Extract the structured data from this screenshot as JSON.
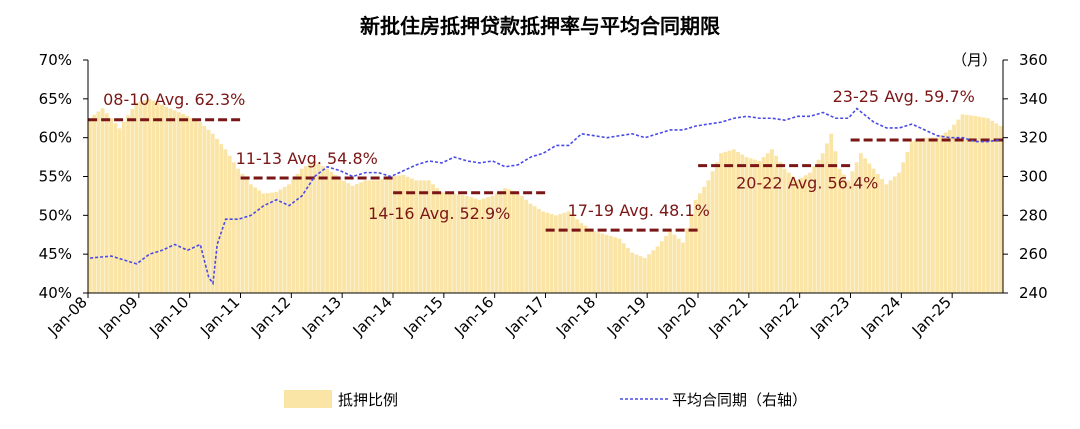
{
  "chart_data": {
    "type": "bar+line",
    "title": "新批住房抵押贷款抵押率与平均合同期限",
    "right_axis_unit": "（月）",
    "left_axis": {
      "ylim": [
        0.4,
        0.7
      ],
      "ticks": [
        "40%",
        "45%",
        "50%",
        "55%",
        "60%",
        "65%",
        "70%"
      ]
    },
    "right_axis": {
      "ylim": [
        240,
        360
      ],
      "ticks": [
        "240",
        "260",
        "280",
        "300",
        "320",
        "340",
        "360"
      ]
    },
    "x_axis": {
      "start": "Jan-08",
      "end": "Dec-25",
      "tick_labels": [
        "Jan-08",
        "Jan-09",
        "Jan-10",
        "Jan-11",
        "Jan-12",
        "Jan-13",
        "Jan-14",
        "Jan-15",
        "Jan-16",
        "Jan-17",
        "Jan-18",
        "Jan-19",
        "Jan-20",
        "Jan-21",
        "Jan-22",
        "Jan-23",
        "Jan-24",
        "Jan-25"
      ]
    },
    "colors": {
      "bar": "#fbe5a6",
      "line": "#4a4be6",
      "avg": "#7b1616"
    },
    "series": [
      {
        "name": "抵押比例",
        "type": "bar",
        "axis": "left",
        "anchors": [
          [
            "2008-01",
            0.625
          ],
          [
            "2008-04",
            0.638
          ],
          [
            "2008-08",
            0.612
          ],
          [
            "2008-12",
            0.645
          ],
          [
            "2009-03",
            0.65
          ],
          [
            "2009-07",
            0.64
          ],
          [
            "2009-12",
            0.628
          ],
          [
            "2010-03",
            0.62
          ],
          [
            "2010-06",
            0.605
          ],
          [
            "2010-09",
            0.585
          ],
          [
            "2010-12",
            0.56
          ],
          [
            "2011-03",
            0.54
          ],
          [
            "2011-06",
            0.528
          ],
          [
            "2011-09",
            0.53
          ],
          [
            "2011-12",
            0.54
          ],
          [
            "2012-03",
            0.56
          ],
          [
            "2012-06",
            0.57
          ],
          [
            "2012-09",
            0.56
          ],
          [
            "2012-12",
            0.548
          ],
          [
            "2013-03",
            0.538
          ],
          [
            "2013-06",
            0.545
          ],
          [
            "2013-09",
            0.545
          ],
          [
            "2013-12",
            0.55
          ],
          [
            "2014-03",
            0.552
          ],
          [
            "2014-06",
            0.545
          ],
          [
            "2014-09",
            0.545
          ],
          [
            "2014-12",
            0.53
          ],
          [
            "2015-03",
            0.528
          ],
          [
            "2015-06",
            0.525
          ],
          [
            "2015-09",
            0.52
          ],
          [
            "2015-12",
            0.525
          ],
          [
            "2016-03",
            0.535
          ],
          [
            "2016-06",
            0.53
          ],
          [
            "2016-09",
            0.515
          ],
          [
            "2016-12",
            0.505
          ],
          [
            "2017-03",
            0.5
          ],
          [
            "2017-06",
            0.505
          ],
          [
            "2017-09",
            0.49
          ],
          [
            "2017-12",
            0.48
          ],
          [
            "2018-03",
            0.475
          ],
          [
            "2018-06",
            0.47
          ],
          [
            "2018-09",
            0.452
          ],
          [
            "2018-12",
            0.445
          ],
          [
            "2019-03",
            0.46
          ],
          [
            "2019-06",
            0.48
          ],
          [
            "2019-09",
            0.465
          ],
          [
            "2019-12",
            0.52
          ],
          [
            "2020-03",
            0.545
          ],
          [
            "2020-06",
            0.58
          ],
          [
            "2020-09",
            0.585
          ],
          [
            "2020-12",
            0.575
          ],
          [
            "2021-03",
            0.57
          ],
          [
            "2021-06",
            0.585
          ],
          [
            "2021-09",
            0.56
          ],
          [
            "2021-12",
            0.545
          ],
          [
            "2022-03",
            0.555
          ],
          [
            "2022-06",
            0.58
          ],
          [
            "2022-08",
            0.605
          ],
          [
            "2022-10",
            0.56
          ],
          [
            "2022-12",
            0.545
          ],
          [
            "2023-03",
            0.58
          ],
          [
            "2023-06",
            0.56
          ],
          [
            "2023-09",
            0.54
          ],
          [
            "2023-12",
            0.555
          ],
          [
            "2024-03",
            0.595
          ],
          [
            "2024-06",
            0.6
          ],
          [
            "2024-09",
            0.6
          ],
          [
            "2024-12",
            0.61
          ],
          [
            "2025-03",
            0.63
          ],
          [
            "2025-06",
            0.628
          ],
          [
            "2025-09",
            0.625
          ],
          [
            "2025-12",
            0.615
          ]
        ]
      },
      {
        "name": "平均合同期（右轴）",
        "type": "line",
        "axis": "right",
        "style": "dashed",
        "anchors": [
          [
            "2008-01",
            258
          ],
          [
            "2008-06",
            259
          ],
          [
            "2008-12",
            255
          ],
          [
            "2009-03",
            260
          ],
          [
            "2009-06",
            262
          ],
          [
            "2009-09",
            265
          ],
          [
            "2009-12",
            262
          ],
          [
            "2010-03",
            265
          ],
          [
            "2010-05",
            248
          ],
          [
            "2010-06",
            245
          ],
          [
            "2010-07",
            265
          ],
          [
            "2010-09",
            278
          ],
          [
            "2010-12",
            278
          ],
          [
            "2011-03",
            280
          ],
          [
            "2011-06",
            285
          ],
          [
            "2011-09",
            288
          ],
          [
            "2011-12",
            285
          ],
          [
            "2012-03",
            290
          ],
          [
            "2012-06",
            300
          ],
          [
            "2012-09",
            305
          ],
          [
            "2012-12",
            303
          ],
          [
            "2013-03",
            300
          ],
          [
            "2013-06",
            302
          ],
          [
            "2013-09",
            302
          ],
          [
            "2013-12",
            300
          ],
          [
            "2014-03",
            303
          ],
          [
            "2014-06",
            306
          ],
          [
            "2014-09",
            308
          ],
          [
            "2014-12",
            307
          ],
          [
            "2015-03",
            310
          ],
          [
            "2015-06",
            308
          ],
          [
            "2015-09",
            307
          ],
          [
            "2015-12",
            308
          ],
          [
            "2016-03",
            305
          ],
          [
            "2016-06",
            306
          ],
          [
            "2016-09",
            310
          ],
          [
            "2016-12",
            312
          ],
          [
            "2017-03",
            316
          ],
          [
            "2017-06",
            316
          ],
          [
            "2017-09",
            322
          ],
          [
            "2017-12",
            321
          ],
          [
            "2018-03",
            320
          ],
          [
            "2018-06",
            321
          ],
          [
            "2018-09",
            322
          ],
          [
            "2018-12",
            320
          ],
          [
            "2019-03",
            322
          ],
          [
            "2019-06",
            324
          ],
          [
            "2019-09",
            324
          ],
          [
            "2019-12",
            326
          ],
          [
            "2020-03",
            327
          ],
          [
            "2020-06",
            328
          ],
          [
            "2020-09",
            330
          ],
          [
            "2020-12",
            331
          ],
          [
            "2021-03",
            330
          ],
          [
            "2021-06",
            330
          ],
          [
            "2021-09",
            329
          ],
          [
            "2021-12",
            331
          ],
          [
            "2022-03",
            331
          ],
          [
            "2022-06",
            333
          ],
          [
            "2022-09",
            330
          ],
          [
            "2022-12",
            330
          ],
          [
            "2023-02",
            335
          ],
          [
            "2023-06",
            328
          ],
          [
            "2023-09",
            325
          ],
          [
            "2023-12",
            325
          ],
          [
            "2024-03",
            327
          ],
          [
            "2024-06",
            324
          ],
          [
            "2024-09",
            321
          ],
          [
            "2024-12",
            320
          ],
          [
            "2025-03",
            320
          ],
          [
            "2025-06",
            318
          ],
          [
            "2025-09",
            318
          ],
          [
            "2025-12",
            319
          ]
        ]
      }
    ],
    "averages": [
      {
        "label": "08-10 Avg. 62.3%",
        "value": 0.623,
        "start": "2008-01",
        "end": "2010-12"
      },
      {
        "label": "11-13 Avg. 54.8%",
        "value": 0.548,
        "start": "2011-01",
        "end": "2013-12"
      },
      {
        "label": "14-16 Avg. 52.9%",
        "value": 0.529,
        "start": "2014-01",
        "end": "2016-12"
      },
      {
        "label": "17-19 Avg. 48.1%",
        "value": 0.481,
        "start": "2017-01",
        "end": "2019-12"
      },
      {
        "label": "20-22 Avg. 56.4%",
        "value": 0.564,
        "start": "2020-01",
        "end": "2022-12"
      },
      {
        "label": "23-25 Avg. 59.7%",
        "value": 0.597,
        "start": "2023-01",
        "end": "2025-12"
      }
    ]
  }
}
